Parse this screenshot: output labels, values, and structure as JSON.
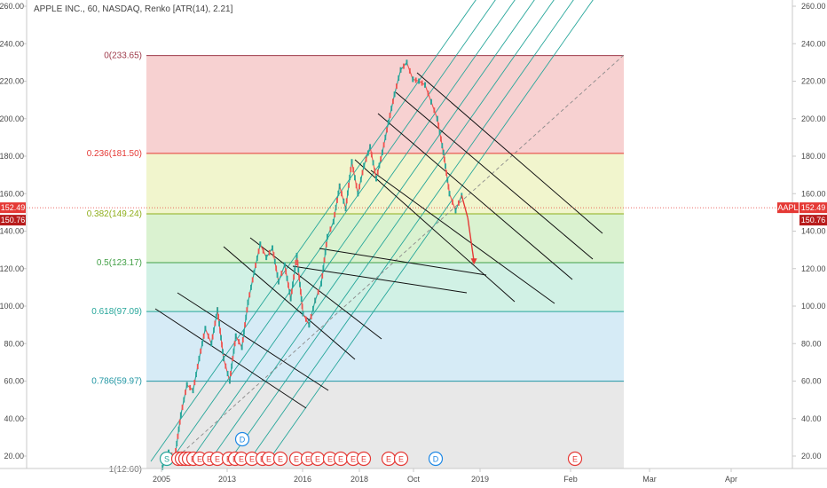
{
  "header": {
    "title": "APPLE INC., 60, NASDAQ, Renko [ATR(14), 2.21]"
  },
  "chart_data": {
    "type": "line",
    "title": "APPLE INC., 60, NASDAQ, Renko [ATR(14), 2.21]",
    "symbol": "AAPL",
    "price_scale": {
      "ylim": [
        10,
        267
      ],
      "ticks": [
        20,
        40,
        60,
        80,
        100,
        120,
        140,
        160,
        180,
        200,
        220,
        240,
        260
      ]
    },
    "time_labels": [
      "2005",
      "2013",
      "2016",
      "2018",
      "Oct",
      "2019",
      "Feb",
      "Mar",
      "Apr"
    ],
    "last_price": {
      "value": 152.49,
      "label": "152.49",
      "ticker_label": "AAPL",
      "color": "#e53935"
    },
    "ask_price": {
      "value": 150.76,
      "label": "150.76"
    },
    "fib_levels": [
      {
        "ratio": "0",
        "value": 233.65,
        "label": "0(233.65)",
        "color": "#9e3a4a"
      },
      {
        "ratio": "0.236",
        "value": 181.5,
        "label": "0.236(181.50)",
        "color": "#e53935"
      },
      {
        "ratio": "0.382",
        "value": 149.24,
        "label": "0.382(149.24)",
        "color": "#8fae1b"
      },
      {
        "ratio": "0.5",
        "value": 123.17,
        "label": "0.5(123.17)",
        "color": "#43a047"
      },
      {
        "ratio": "0.618",
        "value": 97.09,
        "label": "0.618(97.09)",
        "color": "#26a69a"
      },
      {
        "ratio": "0.786",
        "value": 59.97,
        "label": "0.786(59.97)",
        "color": "#2196a3"
      },
      {
        "ratio": "1",
        "value": 12.6,
        "label": "1(12.60)",
        "color": "#777777"
      }
    ],
    "price_path": [
      [
        10,
        14
      ],
      [
        14,
        22
      ],
      [
        18,
        19
      ],
      [
        22,
        42
      ],
      [
        26,
        58
      ],
      [
        30,
        55
      ],
      [
        34,
        72
      ],
      [
        38,
        88
      ],
      [
        42,
        80
      ],
      [
        46,
        98
      ],
      [
        50,
        72
      ],
      [
        54,
        60
      ],
      [
        58,
        84
      ],
      [
        62,
        78
      ],
      [
        66,
        102
      ],
      [
        70,
        118
      ],
      [
        74,
        133
      ],
      [
        78,
        126
      ],
      [
        82,
        131
      ],
      [
        86,
        113
      ],
      [
        90,
        122
      ],
      [
        94,
        104
      ],
      [
        98,
        127
      ],
      [
        102,
        96
      ],
      [
        106,
        90
      ],
      [
        110,
        103
      ],
      [
        114,
        112
      ],
      [
        118,
        137
      ],
      [
        122,
        145
      ],
      [
        126,
        164
      ],
      [
        130,
        152
      ],
      [
        134,
        177
      ],
      [
        138,
        160
      ],
      [
        142,
        175
      ],
      [
        146,
        185
      ],
      [
        150,
        168
      ],
      [
        154,
        182
      ],
      [
        158,
        198
      ],
      [
        162,
        213
      ],
      [
        166,
        226
      ],
      [
        170,
        230
      ],
      [
        174,
        221
      ],
      [
        178,
        220
      ],
      [
        182,
        218
      ],
      [
        186,
        209
      ],
      [
        190,
        200
      ],
      [
        194,
        182
      ],
      [
        198,
        160
      ],
      [
        202,
        151
      ],
      [
        206,
        159
      ],
      [
        210,
        147
      ],
      [
        214,
        124
      ]
    ],
    "event_markers": [
      "S",
      "D",
      "E",
      "E",
      "E",
      "E",
      "E",
      "E",
      "E",
      "E",
      "E",
      "E",
      "E",
      "E",
      "E",
      "E",
      "E",
      "E",
      "E",
      "E",
      "E",
      "E",
      "E",
      "E",
      "E",
      "E",
      "D",
      "E"
    ],
    "colors": {
      "up": "#26a69a",
      "down": "#ef5350",
      "projection": "#e53935",
      "channel": "#26a69a",
      "parallels": "#111111"
    }
  }
}
